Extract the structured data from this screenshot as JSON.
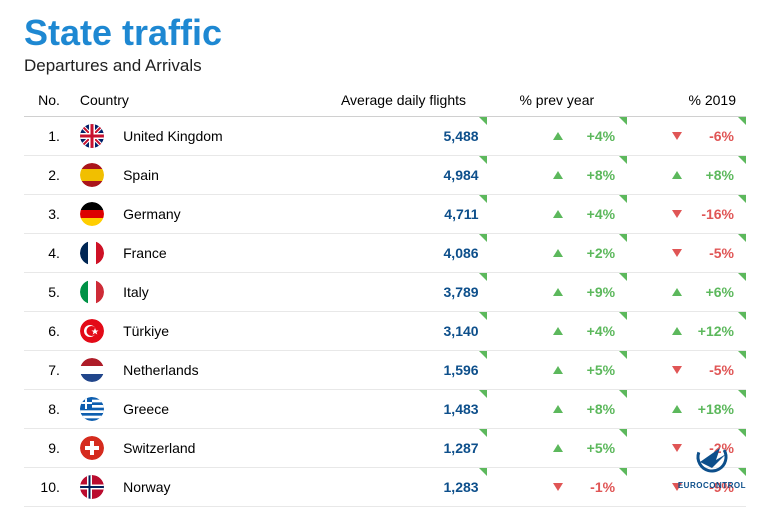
{
  "title": {
    "text": "State traffic",
    "color": "#1e88d2",
    "fontsize": 36,
    "fontweight": 700
  },
  "subtitle": {
    "text": "Departures and Arrivals",
    "color": "#222222",
    "fontsize": 17
  },
  "columns": {
    "no": "No.",
    "country": "Country",
    "flights": "Average daily flights",
    "prev": "% prev year",
    "y2019": "% 2019"
  },
  "colors": {
    "up": "#5cb85c",
    "down": "#e05555",
    "flights_value": "#0d4f8b",
    "row_border": "#e8e8e8",
    "header_border": "#d0d0d0",
    "background": "#ffffff"
  },
  "rows": [
    {
      "no": "1.",
      "country": "United Kingdom",
      "flights": "5,488",
      "prev": {
        "dir": "up",
        "val": "+4%"
      },
      "y2019": {
        "dir": "down",
        "val": "-6%"
      },
      "flag": "uk"
    },
    {
      "no": "2.",
      "country": "Spain",
      "flights": "4,984",
      "prev": {
        "dir": "up",
        "val": "+8%"
      },
      "y2019": {
        "dir": "up",
        "val": "+8%"
      },
      "flag": "es"
    },
    {
      "no": "3.",
      "country": "Germany",
      "flights": "4,711",
      "prev": {
        "dir": "up",
        "val": "+4%"
      },
      "y2019": {
        "dir": "down",
        "val": "-16%"
      },
      "flag": "de"
    },
    {
      "no": "4.",
      "country": "France",
      "flights": "4,086",
      "prev": {
        "dir": "up",
        "val": "+2%"
      },
      "y2019": {
        "dir": "down",
        "val": "-5%"
      },
      "flag": "fr"
    },
    {
      "no": "5.",
      "country": "Italy",
      "flights": "3,789",
      "prev": {
        "dir": "up",
        "val": "+9%"
      },
      "y2019": {
        "dir": "up",
        "val": "+6%"
      },
      "flag": "it"
    },
    {
      "no": "6.",
      "country": "Türkiye",
      "flights": "3,140",
      "prev": {
        "dir": "up",
        "val": "+4%"
      },
      "y2019": {
        "dir": "up",
        "val": "+12%"
      },
      "flag": "tr"
    },
    {
      "no": "7.",
      "country": "Netherlands",
      "flights": "1,596",
      "prev": {
        "dir": "up",
        "val": "+5%"
      },
      "y2019": {
        "dir": "down",
        "val": "-5%"
      },
      "flag": "nl"
    },
    {
      "no": "8.",
      "country": "Greece",
      "flights": "1,483",
      "prev": {
        "dir": "up",
        "val": "+8%"
      },
      "y2019": {
        "dir": "up",
        "val": "+18%"
      },
      "flag": "gr"
    },
    {
      "no": "9.",
      "country": "Switzerland",
      "flights": "1,287",
      "prev": {
        "dir": "up",
        "val": "+5%"
      },
      "y2019": {
        "dir": "down",
        "val": "-2%"
      },
      "flag": "ch"
    },
    {
      "no": "10.",
      "country": "Norway",
      "flights": "1,283",
      "prev": {
        "dir": "down",
        "val": "-1%"
      },
      "y2019": {
        "dir": "down",
        "val": "-9%"
      },
      "flag": "no"
    }
  ],
  "flags": {
    "uk": "<svg viewBox='0 0 24 24'><defs><clipPath id='cuk'><circle cx='12' cy='12' r='12'/></clipPath></defs><g clip-path='url(#cuk)'><rect width='24' height='24' fill='#012169'/><path d='M0 0l24 24M24 0L0 24' stroke='#fff' stroke-width='4'/><path d='M0 0l24 24M24 0L0 24' stroke='#c8102e' stroke-width='2'/><path d='M12 0v24M0 12h24' stroke='#fff' stroke-width='6'/><path d='M12 0v24M0 12h24' stroke='#c8102e' stroke-width='3'/></g></svg>",
    "es": "<svg viewBox='0 0 24 24'><defs><clipPath id='ces'><circle cx='12' cy='12' r='12'/></clipPath></defs><g clip-path='url(#ces)'><rect width='24' height='6' y='0' fill='#AA151B'/><rect width='24' height='12' y='6' fill='#F1BF00'/><rect width='24' height='6' y='18' fill='#AA151B'/></g></svg>",
    "de": "<svg viewBox='0 0 24 24'><defs><clipPath id='cde'><circle cx='12' cy='12' r='12'/></clipPath></defs><g clip-path='url(#cde)'><rect width='24' height='8' y='0' fill='#000'/><rect width='24' height='8' y='8' fill='#DD0000'/><rect width='24' height='8' y='16' fill='#FFCE00'/></g></svg>",
    "fr": "<svg viewBox='0 0 24 24'><defs><clipPath id='cfr'><circle cx='12' cy='12' r='12'/></clipPath></defs><g clip-path='url(#cfr)'><rect width='8' height='24' x='0' fill='#002654'/><rect width='8' height='24' x='8' fill='#fff'/><rect width='8' height='24' x='16' fill='#CE1126'/></g></svg>",
    "it": "<svg viewBox='0 0 24 24'><defs><clipPath id='cit'><circle cx='12' cy='12' r='12'/></clipPath></defs><g clip-path='url(#cit)'><rect width='8' height='24' x='0' fill='#009246'/><rect width='8' height='24' x='8' fill='#fff'/><rect width='8' height='24' x='16' fill='#CE2B37'/></g></svg>",
    "tr": "<svg viewBox='0 0 24 24'><defs><clipPath id='ctr'><circle cx='12' cy='12' r='12'/></clipPath></defs><g clip-path='url(#ctr)'><rect width='24' height='24' fill='#E30A17'/><circle cx='10' cy='12' r='6' fill='#fff'/><circle cx='11.5' cy='12' r='5' fill='#E30A17'/><polygon points='15,9 16,11.5 18.5,11.5 16.5,13 17.3,15.5 15,14 12.7,15.5 13.5,13 11.5,11.5 14,11.5' fill='#fff'/></g></svg>",
    "nl": "<svg viewBox='0 0 24 24'><defs><clipPath id='cnl'><circle cx='12' cy='12' r='12'/></clipPath></defs><g clip-path='url(#cnl)'><rect width='24' height='8' y='0' fill='#AE1C28'/><rect width='24' height='8' y='8' fill='#fff'/><rect width='24' height='8' y='16' fill='#21468B'/></g></svg>",
    "gr": "<svg viewBox='0 0 24 24'><defs><clipPath id='cgr'><circle cx='12' cy='12' r='12'/></clipPath></defs><g clip-path='url(#cgr)'><rect width='24' height='24' fill='#0D5EAF'/><rect width='24' height='2.67' y='2.67' fill='#fff'/><rect width='24' height='2.67' y='8' fill='#fff'/><rect width='24' height='2.67' y='13.33' fill='#fff'/><rect width='24' height='2.67' y='18.67' fill='#fff'/><rect width='12' height='12' fill='#0D5EAF'/><rect x='5' width='2' height='12' fill='#fff'/><rect y='5' width='12' height='2' fill='#fff'/></g></svg>",
    "ch": "<svg viewBox='0 0 24 24'><defs><clipPath id='cch'><circle cx='12' cy='12' r='12'/></clipPath></defs><g clip-path='url(#cch)'><rect width='24' height='24' fill='#D52B1E'/><rect x='10' y='5' width='4' height='14' fill='#fff'/><rect x='5' y='10' width='14' height='4' fill='#fff'/></g></svg>",
    "no": "<svg viewBox='0 0 24 24'><defs><clipPath id='cno'><circle cx='12' cy='12' r='12'/></clipPath></defs><g clip-path='url(#cno)'><rect width='24' height='24' fill='#BA0C2F'/><rect x='7' width='5' height='24' fill='#fff'/><rect y='9.5' width='24' height='5' fill='#fff'/><rect x='8.5' width='2' height='24' fill='#00205B'/><rect y='11' width='24' height='2' fill='#00205B'/></g></svg>"
  },
  "logo": {
    "text": "EUROCONTROL",
    "color": "#0d4f8b"
  }
}
